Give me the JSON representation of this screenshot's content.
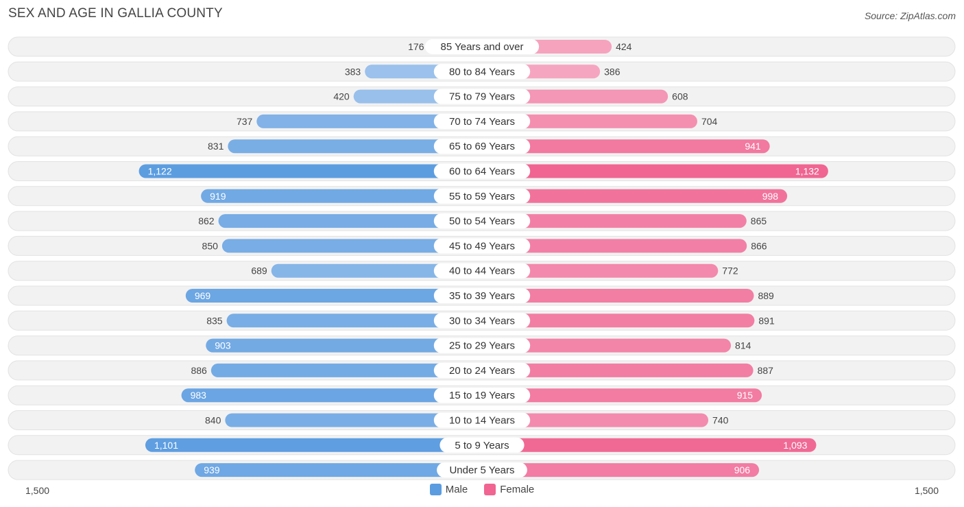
{
  "title": "SEX AND AGE IN GALLIA COUNTY",
  "source": "Source: ZipAtlas.com",
  "colors": {
    "male_light": "#a9c9ee",
    "male_dark": "#5b9ce0",
    "female_light": "#f7b3ca",
    "female_dark": "#f06592",
    "row_bg": "#f0f0f0",
    "row_border": "#e2e2e2"
  },
  "axis": {
    "left_label": "1,500",
    "right_label": "1,500"
  },
  "legend": {
    "male": "Male",
    "female": "Female"
  },
  "chart_data": {
    "type": "bar",
    "orientation": "horizontal-butterfly",
    "title": "SEX AND AGE IN GALLIA COUNTY",
    "xlim": [
      -1500,
      1500
    ],
    "categories": [
      "85 Years and over",
      "80 to 84 Years",
      "75 to 79 Years",
      "70 to 74 Years",
      "65 to 69 Years",
      "60 to 64 Years",
      "55 to 59 Years",
      "50 to 54 Years",
      "45 to 49 Years",
      "40 to 44 Years",
      "35 to 39 Years",
      "30 to 34 Years",
      "25 to 29 Years",
      "20 to 24 Years",
      "15 to 19 Years",
      "10 to 14 Years",
      "5 to 9 Years",
      "Under 5 Years"
    ],
    "series": [
      {
        "name": "Male",
        "values": [
          176,
          383,
          420,
          737,
          831,
          1122,
          919,
          862,
          850,
          689,
          969,
          835,
          903,
          886,
          983,
          840,
          1101,
          939
        ],
        "labels": [
          "176",
          "383",
          "420",
          "737",
          "831",
          "1,122",
          "919",
          "862",
          "850",
          "689",
          "969",
          "835",
          "903",
          "886",
          "983",
          "840",
          "1,101",
          "939"
        ]
      },
      {
        "name": "Female",
        "values": [
          424,
          386,
          608,
          704,
          941,
          1132,
          998,
          865,
          866,
          772,
          889,
          891,
          814,
          887,
          915,
          740,
          1093,
          906
        ],
        "labels": [
          "424",
          "386",
          "608",
          "704",
          "941",
          "1,132",
          "998",
          "865",
          "866",
          "772",
          "889",
          "891",
          "814",
          "887",
          "915",
          "740",
          "1,093",
          "906"
        ]
      }
    ],
    "legend_position": "bottom-center",
    "grid": false
  }
}
